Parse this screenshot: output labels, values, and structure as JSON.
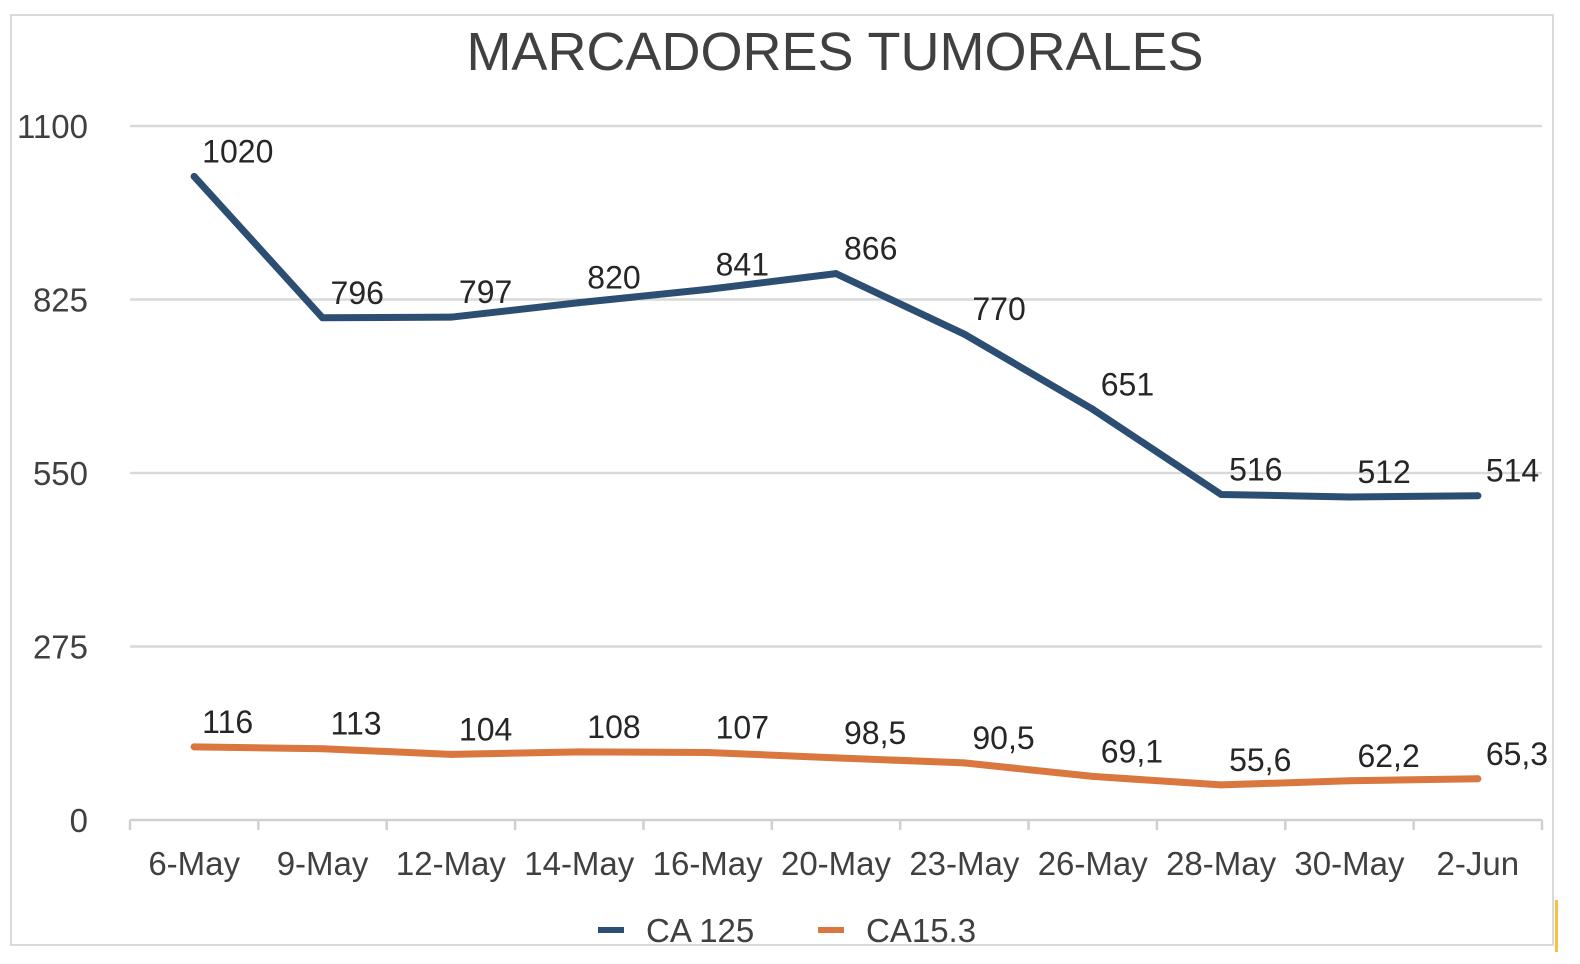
{
  "chart_data": {
    "type": "line",
    "title": "MARCADORES TUMORALES",
    "xlabel": "",
    "ylabel": "",
    "categories": [
      "6-May",
      "9-May",
      "12-May",
      "14-May",
      "16-May",
      "20-May",
      "23-May",
      "26-May",
      "28-May",
      "30-May",
      "2-Jun"
    ],
    "y_ticks": [
      0,
      275,
      550,
      825,
      1100
    ],
    "ylim": [
      0,
      1100
    ],
    "grid": true,
    "legend_position": "bottom",
    "series": [
      {
        "name": "CA 125",
        "color": "#2c4e72",
        "values": [
          1020,
          796,
          797,
          820,
          841,
          866,
          770,
          651,
          516,
          512,
          514
        ],
        "labels": [
          "1020",
          "796",
          "797",
          "820",
          "841",
          "866",
          "770",
          "651",
          "516",
          "512",
          "514"
        ]
      },
      {
        "name": "CA15.3",
        "color": "#d9773f",
        "values": [
          116,
          113,
          104,
          108,
          107,
          98.5,
          90.5,
          69.1,
          55.6,
          62.2,
          65.3
        ],
        "labels": [
          "116",
          "113",
          "104",
          "108",
          "107",
          "98,5",
          "90,5",
          "69,1",
          "55,6",
          "62,2",
          "65,3"
        ]
      }
    ]
  }
}
